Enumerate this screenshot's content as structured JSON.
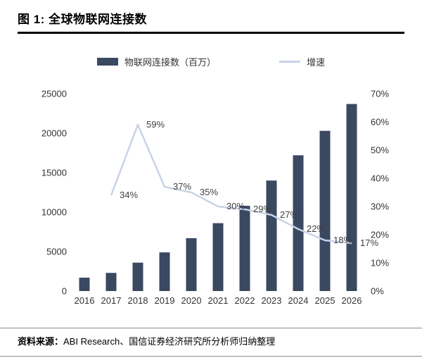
{
  "figure": {
    "title": "图 1: 全球物联网连接数",
    "source_label": "资料来源：",
    "source_text": "ABI Research、国信证券经济研究所分析师归纳整理"
  },
  "colors": {
    "bar": "#3A4862",
    "line": "#C9D3E8",
    "axis_text": "#333333",
    "data_label": "#404040",
    "title_rule": "#000000",
    "footer_rule": "#8C8C8C"
  },
  "chart_data": {
    "type": "bar",
    "subtype": "bar+line combo, dual axis",
    "title": "全球物联网连接数",
    "categories": [
      "2016",
      "2017",
      "2018",
      "2019",
      "2020",
      "2021",
      "2022",
      "2023",
      "2024",
      "2025",
      "2026"
    ],
    "series": [
      {
        "name": "物联网连接数（百万）",
        "type": "bar",
        "axis": "left",
        "values": [
          1700,
          2300,
          3600,
          4900,
          6700,
          8600,
          10800,
          14000,
          17200,
          20300,
          23700
        ]
      },
      {
        "name": "增速",
        "type": "line",
        "axis": "right",
        "values": [
          null,
          34,
          59,
          37,
          35,
          30,
          29,
          27,
          22,
          18,
          17
        ],
        "point_labels": [
          "",
          "34%",
          "59%",
          "37%",
          "35%",
          "30%",
          "29%",
          "27%",
          "22%",
          "18%",
          "17%"
        ]
      }
    ],
    "left_axis": {
      "min": 0,
      "max": 25000,
      "ticks": [
        "0",
        "5000",
        "10000",
        "15000",
        "20000",
        "25000"
      ]
    },
    "right_axis": {
      "min": 0,
      "max": 70,
      "ticks": [
        "0%",
        "10%",
        "20%",
        "30%",
        "40%",
        "50%",
        "60%",
        "70%"
      ]
    },
    "grid": false,
    "legend_position": "top"
  }
}
